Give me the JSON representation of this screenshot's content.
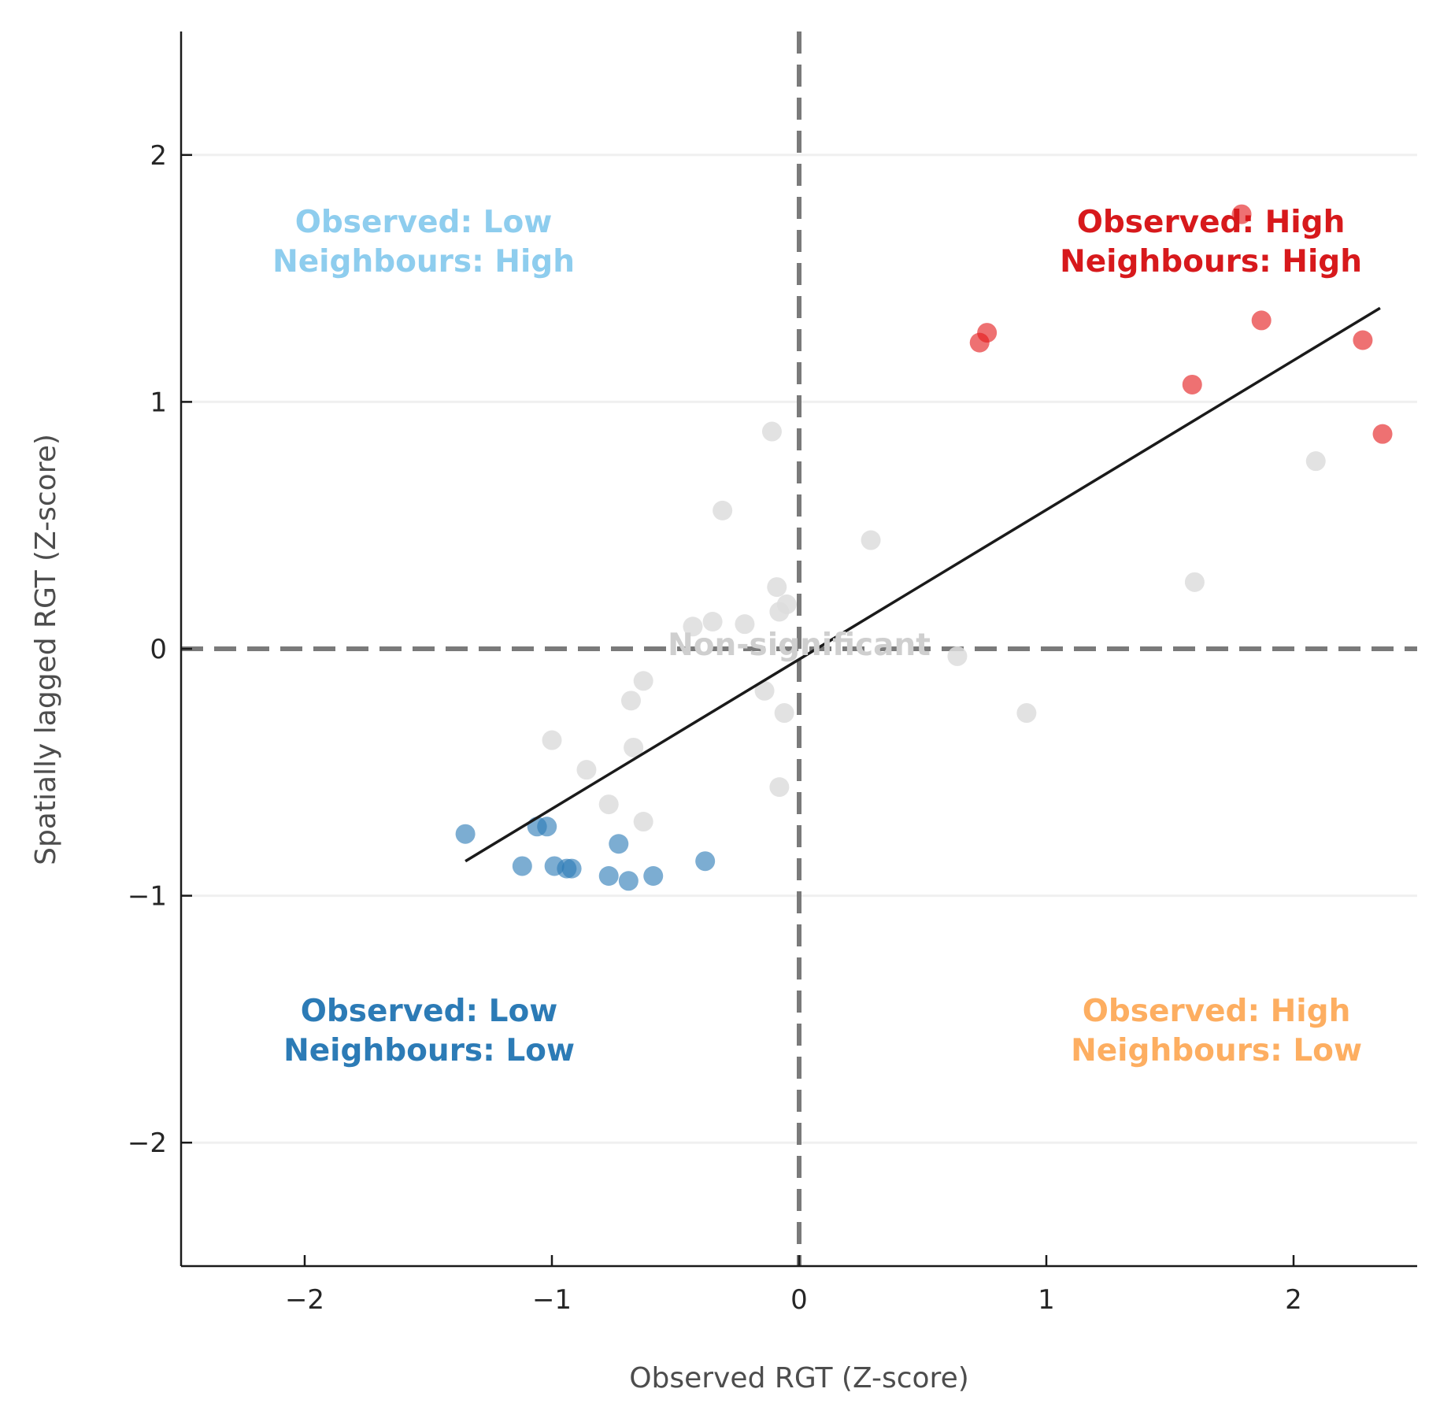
{
  "chart_data": {
    "type": "scatter",
    "title": "",
    "xlabel": "Observed RGT (Z-score)",
    "ylabel": "Spatially lagged RGT (Z-score)",
    "xlim": [
      -2.5,
      2.5
    ],
    "ylim": [
      -2.5,
      2.5
    ],
    "xticks": [
      -2,
      -1,
      0,
      1,
      2
    ],
    "yticks": [
      -2,
      -1,
      0,
      1,
      2
    ],
    "xtick_labels": [
      "−2",
      "−1",
      "0",
      "1",
      "2"
    ],
    "ytick_labels": [
      "−2",
      "−1",
      "0",
      "1",
      "2"
    ],
    "grid": "horizontal",
    "reference_lines": {
      "x": 0,
      "y": 0,
      "style": "dashed",
      "color": "#7a7a7a"
    },
    "regression_line": {
      "x": [
        -1.35,
        2.35
      ],
      "y": [
        -0.86,
        1.38
      ],
      "color": "#1a1a1a"
    },
    "quadrant_labels": [
      {
        "line1": "Observed: Low",
        "line2": "Neighbours: High",
        "color": "#8ecdee",
        "position": "top-left"
      },
      {
        "line1": "Observed: High",
        "line2": "Neighbours: High",
        "color": "#d7191c",
        "position": "top-right"
      },
      {
        "line1": "Observed: Low",
        "line2": "Neighbours: Low",
        "color": "#2c7bb6",
        "position": "bottom-left"
      },
      {
        "line1": "Observed: High",
        "line2": "Neighbours: Low",
        "color": "#fdae61",
        "position": "bottom-right"
      }
    ],
    "center_label": "Non-significant",
    "series": [
      {
        "color": "#e41a1c",
        "points": [
          [
            1.79,
            1.76
          ],
          [
            0.73,
            1.24
          ],
          [
            0.76,
            1.28
          ],
          [
            1.87,
            1.33
          ],
          [
            2.28,
            1.25
          ],
          [
            1.59,
            1.07
          ],
          [
            2.36,
            0.87
          ]
        ]
      },
      {
        "color": "#2c7bb6",
        "points": [
          [
            -1.35,
            -0.75
          ],
          [
            -1.06,
            -0.72
          ],
          [
            -1.02,
            -0.72
          ],
          [
            -1.12,
            -0.88
          ],
          [
            -0.99,
            -0.88
          ],
          [
            -0.94,
            -0.89
          ],
          [
            -0.92,
            -0.89
          ],
          [
            -0.73,
            -0.79
          ],
          [
            -0.77,
            -0.92
          ],
          [
            -0.69,
            -0.94
          ],
          [
            -0.59,
            -0.92
          ],
          [
            -0.38,
            -0.86
          ]
        ]
      },
      {
        "color": "#dddddd",
        "points": [
          [
            -0.11,
            0.88
          ],
          [
            -0.31,
            0.56
          ],
          [
            -0.43,
            0.09
          ],
          [
            -0.35,
            0.11
          ],
          [
            -0.22,
            0.1
          ],
          [
            -0.09,
            0.25
          ],
          [
            -0.08,
            0.15
          ],
          [
            -0.05,
            0.18
          ],
          [
            0.29,
            0.44
          ],
          [
            1.6,
            0.27
          ],
          [
            2.09,
            0.76
          ],
          [
            0.64,
            -0.03
          ],
          [
            0.92,
            -0.26
          ],
          [
            -0.14,
            -0.17
          ],
          [
            -0.06,
            -0.26
          ],
          [
            -0.63,
            -0.13
          ],
          [
            -0.68,
            -0.21
          ],
          [
            -1.0,
            -0.37
          ],
          [
            -0.86,
            -0.49
          ],
          [
            -0.67,
            -0.4
          ],
          [
            -0.77,
            -0.63
          ],
          [
            -0.63,
            -0.7
          ],
          [
            -0.08,
            -0.56
          ]
        ]
      }
    ]
  }
}
